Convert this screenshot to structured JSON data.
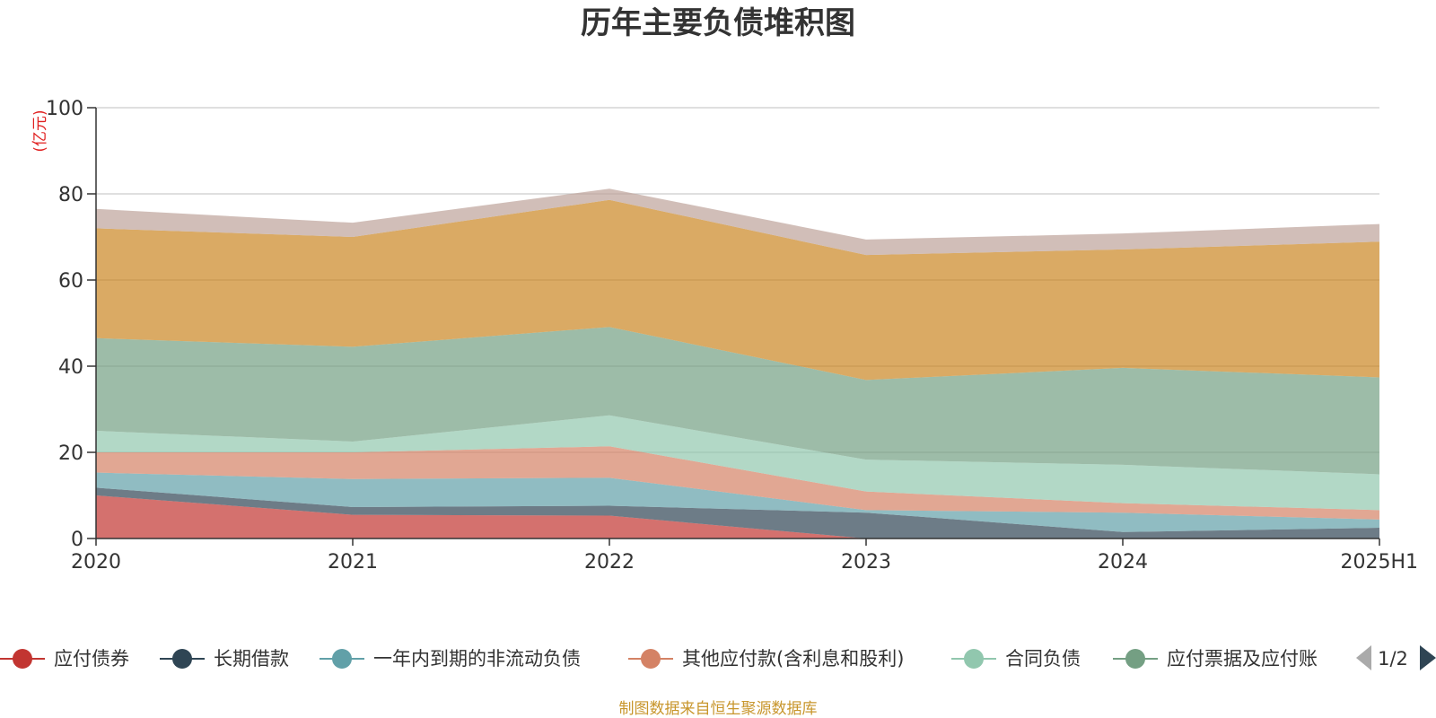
{
  "chart_data": {
    "type": "area",
    "stacked": true,
    "title": "历年主要负债堆积图",
    "unit": "(亿元)",
    "x": [
      "2020",
      "2021",
      "2022",
      "2023",
      "2024",
      "2025H1"
    ],
    "ylim": [
      0,
      100
    ],
    "yticks": [
      0,
      20,
      40,
      60,
      80,
      100
    ],
    "grid": true,
    "series": [
      {
        "name": "应付债券",
        "color": "#c23531",
        "values": [
          10.0,
          5.5,
          5.3,
          0.0,
          0.0,
          0.0
        ]
      },
      {
        "name": "长期借款",
        "color": "#2f4554",
        "values": [
          1.8,
          1.8,
          2.3,
          6.0,
          1.5,
          2.5
        ]
      },
      {
        "name": "一年内到期的非流动负债",
        "color": "#61a0a8",
        "values": [
          3.5,
          6.5,
          6.5,
          0.6,
          4.5,
          1.9
        ]
      },
      {
        "name": "其他应付款(含利息和股利)",
        "color": "#d48265",
        "values": [
          4.7,
          6.2,
          7.3,
          4.3,
          2.2,
          2.2
        ]
      },
      {
        "name": "合同负债",
        "color": "#91c7ae",
        "values": [
          5.0,
          2.5,
          7.2,
          7.4,
          8.9,
          8.3
        ]
      },
      {
        "name": "应付票据及应付账款",
        "color": "#749f83",
        "values": [
          21.5,
          22.0,
          20.5,
          18.5,
          22.5,
          22.5
        ]
      },
      {
        "name": "",
        "color": "#ca8622",
        "values": [
          25.5,
          25.5,
          29.5,
          29.0,
          27.5,
          31.5
        ]
      },
      {
        "name": "",
        "color": "#bda29a",
        "values": [
          4.5,
          3.3,
          2.6,
          3.6,
          3.7,
          4.1
        ]
      }
    ],
    "legend": {
      "position": "bottom",
      "visible_items": [
        "应付债券",
        "长期借款",
        "一年内到期的非流动负债",
        "其他应付款(含利息和股利)",
        "合同负债",
        "应付票据及应付账"
      ],
      "page": "1/2"
    },
    "source": "制图数据来自恒生聚源数据库"
  }
}
